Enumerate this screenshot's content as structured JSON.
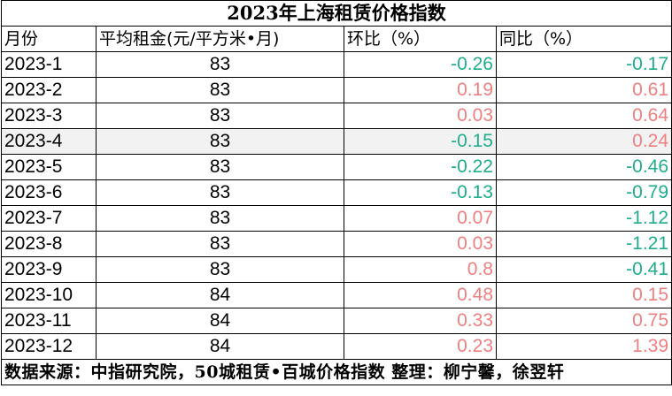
{
  "title": "2023年上海租赁价格指数",
  "columns": [
    "月份",
    "平均租金(元/平方米•月)",
    "环比（%）",
    "同比（%）"
  ],
  "rows": [
    {
      "month": "2023-1",
      "rent": "83",
      "mom": "-0.26",
      "yoy": "-0.17"
    },
    {
      "month": "2023-2",
      "rent": "83",
      "mom": "0.19",
      "yoy": "0.61"
    },
    {
      "month": "2023-3",
      "rent": "83",
      "mom": "0.03",
      "yoy": "0.64"
    },
    {
      "month": "2023-4",
      "rent": "83",
      "mom": "-0.15",
      "yoy": "0.24"
    },
    {
      "month": "2023-5",
      "rent": "83",
      "mom": "-0.22",
      "yoy": "-0.46"
    },
    {
      "month": "2023-6",
      "rent": "83",
      "mom": "-0.13",
      "yoy": "-0.79"
    },
    {
      "month": "2023-7",
      "rent": "83",
      "mom": "0.07",
      "yoy": "-1.12"
    },
    {
      "month": "2023-8",
      "rent": "83",
      "mom": "0.03",
      "yoy": "-1.21"
    },
    {
      "month": "2023-9",
      "rent": "83",
      "mom": "0.8",
      "yoy": "-0.41"
    },
    {
      "month": "2023-10",
      "rent": "84",
      "mom": "0.48",
      "yoy": "0.15"
    },
    {
      "month": "2023-11",
      "rent": "84",
      "mom": "0.33",
      "yoy": "0.75"
    },
    {
      "month": "2023-12",
      "rent": "84",
      "mom": "0.23",
      "yoy": "1.39"
    }
  ],
  "footer": "数据来源：中指研究院，50城租赁•百城价格指数 整理：柳宁馨，徐翌轩",
  "colors": {
    "positive": "#f07f80",
    "negative": "#1fae8d",
    "highlight_row": "#f2f2f2"
  }
}
